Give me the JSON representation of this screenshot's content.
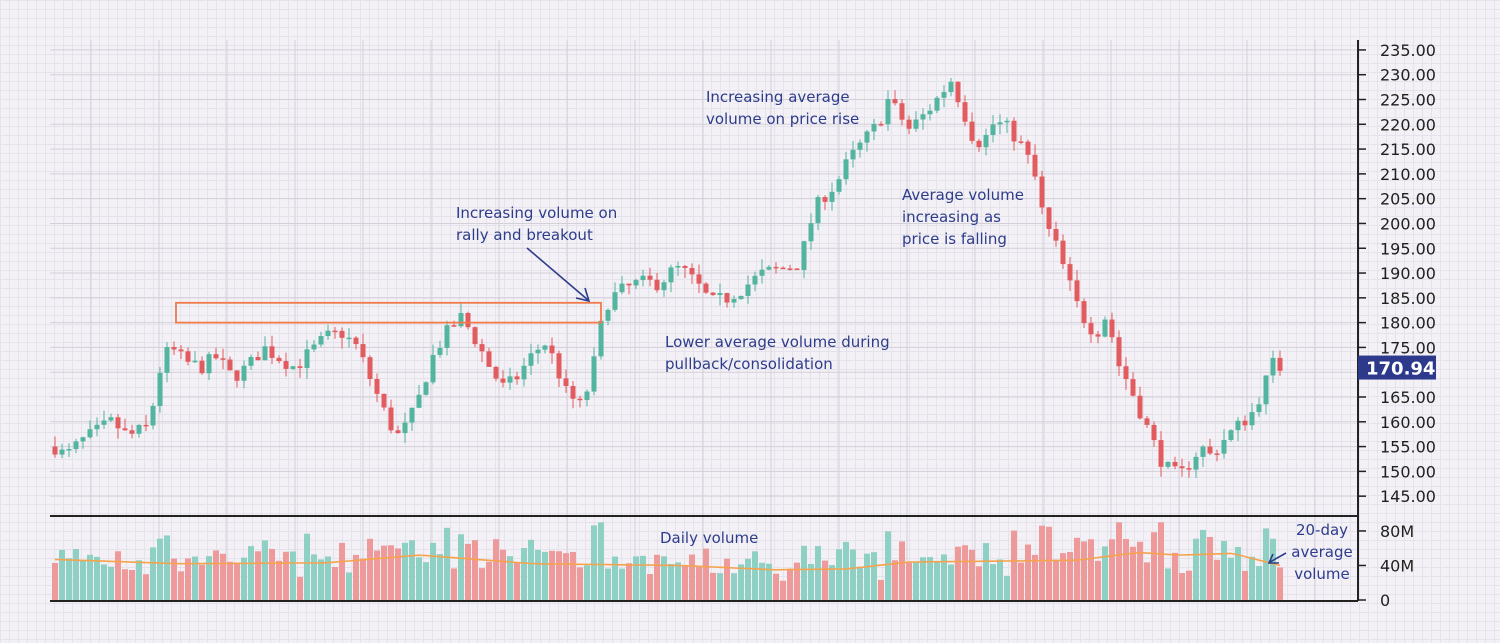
{
  "chart_data": {
    "type": "candlestick",
    "title": "",
    "price_axis": {
      "ticks": [
        "235.00",
        "230.00",
        "225.00",
        "220.00",
        "215.00",
        "210.00",
        "205.00",
        "200.00",
        "195.00",
        "190.00",
        "185.00",
        "180.00",
        "175.00",
        "170.00",
        "165.00",
        "160.00",
        "155.00",
        "150.00",
        "145.00"
      ],
      "range": [
        141,
        237
      ]
    },
    "volume_axis": {
      "ticks": [
        "80M",
        "40M",
        "0"
      ],
      "range": [
        0,
        95
      ]
    },
    "last_price": "170.94",
    "price_path": [
      [
        0,
        155
      ],
      [
        10,
        153
      ],
      [
        25,
        156
      ],
      [
        40,
        158
      ],
      [
        55,
        160
      ],
      [
        70,
        157
      ],
      [
        90,
        159
      ],
      [
        100,
        170
      ],
      [
        110,
        175
      ],
      [
        125,
        172
      ],
      [
        140,
        171
      ],
      [
        155,
        173
      ],
      [
        170,
        169
      ],
      [
        185,
        171
      ],
      [
        200,
        175
      ],
      [
        215,
        173
      ],
      [
        230,
        171
      ],
      [
        245,
        174
      ],
      [
        260,
        177
      ],
      [
        275,
        178
      ],
      [
        290,
        175
      ],
      [
        300,
        170
      ],
      [
        310,
        165
      ],
      [
        320,
        160
      ],
      [
        330,
        157
      ],
      [
        340,
        160
      ],
      [
        350,
        165
      ],
      [
        360,
        172
      ],
      [
        370,
        176
      ],
      [
        380,
        179
      ],
      [
        390,
        181
      ],
      [
        400,
        178
      ],
      [
        410,
        174
      ],
      [
        420,
        170
      ],
      [
        430,
        167
      ],
      [
        440,
        168
      ],
      [
        450,
        171
      ],
      [
        460,
        174
      ],
      [
        470,
        176
      ],
      [
        480,
        172
      ],
      [
        490,
        166
      ],
      [
        500,
        164
      ],
      [
        505,
        163
      ],
      [
        510,
        166
      ],
      [
        515,
        169
      ],
      [
        520,
        175
      ],
      [
        525,
        180
      ],
      [
        530,
        184
      ],
      [
        540,
        186
      ],
      [
        560,
        188
      ],
      [
        580,
        188
      ],
      [
        590,
        190
      ],
      [
        600,
        191
      ],
      [
        615,
        188
      ],
      [
        630,
        184
      ],
      [
        645,
        185
      ],
      [
        660,
        187
      ],
      [
        680,
        190
      ],
      [
        700,
        191
      ],
      [
        715,
        192
      ],
      [
        725,
        200
      ],
      [
        735,
        205
      ],
      [
        750,
        208
      ],
      [
        760,
        212
      ],
      [
        770,
        215
      ],
      [
        790,
        220
      ],
      [
        800,
        225
      ],
      [
        810,
        222
      ],
      [
        820,
        219
      ],
      [
        835,
        222
      ],
      [
        850,
        226
      ],
      [
        860,
        229
      ],
      [
        870,
        224
      ],
      [
        880,
        218
      ],
      [
        890,
        216
      ],
      [
        900,
        220
      ],
      [
        910,
        220
      ],
      [
        920,
        218
      ],
      [
        930,
        215
      ],
      [
        940,
        210
      ],
      [
        945,
        205
      ],
      [
        950,
        200
      ],
      [
        960,
        196
      ],
      [
        970,
        190
      ],
      [
        980,
        184
      ],
      [
        990,
        180
      ],
      [
        1000,
        178
      ],
      [
        1010,
        182
      ],
      [
        1020,
        172
      ],
      [
        1030,
        168
      ],
      [
        1040,
        163
      ],
      [
        1050,
        158
      ],
      [
        1060,
        153
      ],
      [
        1070,
        150
      ],
      [
        1080,
        149
      ],
      [
        1090,
        152
      ],
      [
        1100,
        155
      ],
      [
        1110,
        153
      ],
      [
        1120,
        156
      ],
      [
        1130,
        158
      ],
      [
        1140,
        160
      ],
      [
        1150,
        162
      ],
      [
        1160,
        167
      ],
      [
        1170,
        172
      ],
      [
        1176,
        171
      ]
    ],
    "volume_avg": [
      [
        0,
        47
      ],
      [
        120,
        42
      ],
      [
        260,
        43
      ],
      [
        350,
        52
      ],
      [
        460,
        42
      ],
      [
        600,
        40
      ],
      [
        690,
        35
      ],
      [
        760,
        36
      ],
      [
        820,
        44
      ],
      [
        900,
        45
      ],
      [
        980,
        46
      ],
      [
        1040,
        55
      ],
      [
        1080,
        52
      ],
      [
        1130,
        54
      ],
      [
        1176,
        40
      ]
    ],
    "channel": {
      "upper": 184,
      "lower": 180
    },
    "annotations": {
      "daily_volume": "Daily volume",
      "avg_volume": [
        "20-day",
        "average",
        "volume"
      ],
      "breakout": [
        "Increasing volume on",
        "rally and breakout"
      ],
      "rise": [
        "Increasing average",
        "volume on price rise"
      ],
      "falling": [
        "Average volume",
        "increasing as",
        "price is falling"
      ],
      "pullback": [
        "Lower average volume during",
        "pullback/consolidation"
      ]
    },
    "colors": {
      "up": "#53b4a0",
      "down": "#e25b5e",
      "volume_up": "#8fd0c4",
      "volume_down": "#ef9a9a",
      "avg_line": "#f5a34d",
      "channel": "#f07a4a",
      "annotation": "#2e3c8c",
      "price_tag": "#2d3a8c"
    }
  }
}
